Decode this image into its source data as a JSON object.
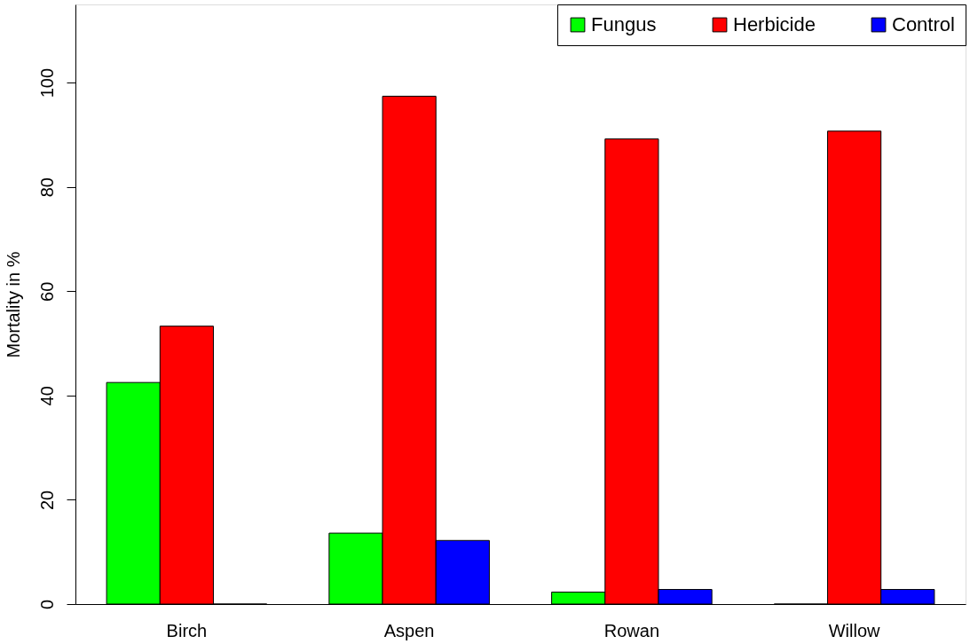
{
  "chart_data": {
    "type": "bar",
    "ylabel": "Mortality in %",
    "categories": [
      "Birch",
      "Aspen",
      "Rowan",
      "Willow"
    ],
    "series": [
      {
        "name": "Fungus",
        "color": "#00ff00",
        "values": [
          42.5,
          13.6,
          2.3,
          0
        ]
      },
      {
        "name": "Herbicide",
        "color": "#ff0000",
        "values": [
          53.3,
          97.4,
          89.2,
          90.7
        ]
      },
      {
        "name": "Control",
        "color": "#0000ff",
        "values": [
          0,
          12.2,
          2.8,
          2.8
        ]
      }
    ],
    "ylim": [
      0,
      115
    ],
    "yticks": [
      0,
      20,
      40,
      60,
      80,
      100
    ],
    "grid": false,
    "legend": "top right"
  }
}
